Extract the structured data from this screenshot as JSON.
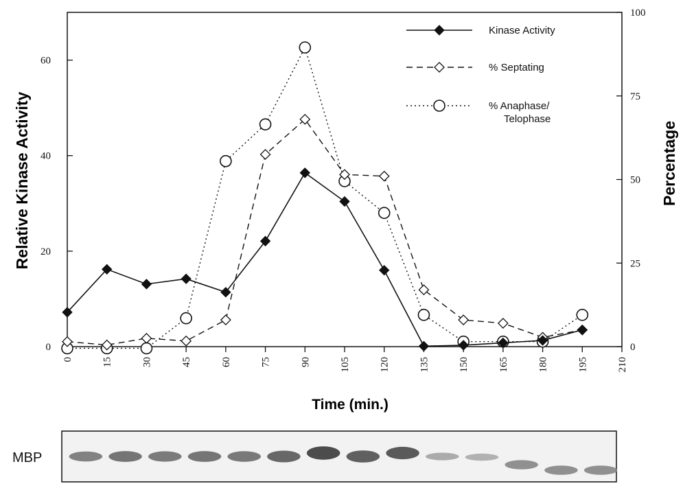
{
  "chart_data": {
    "type": "line",
    "xlabel": "Time (min.)",
    "ylabel_left": "Relative Kinase Activity",
    "ylabel_right": "Percentage",
    "x_ticks": [
      0,
      15,
      30,
      45,
      60,
      75,
      90,
      105,
      120,
      135,
      150,
      165,
      180,
      195,
      210
    ],
    "xlim": [
      0,
      210
    ],
    "y_left_ticks": [
      0,
      20,
      40,
      60
    ],
    "y_left_lim": [
      0,
      70
    ],
    "y_right_ticks": [
      0,
      25,
      50,
      75,
      100
    ],
    "y_right_lim": [
      0,
      100
    ],
    "grid": false,
    "legend_position": "top-right",
    "series": [
      {
        "name": "Kinase Activity",
        "axis": "left",
        "line": "solid",
        "marker": "filled-diamond",
        "x": [
          0,
          15,
          30,
          45,
          60,
          75,
          90,
          105,
          120,
          135,
          150,
          165,
          180,
          195
        ],
        "y": [
          7.2,
          16.2,
          13.1,
          14.2,
          11.4,
          22.1,
          36.4,
          30.4,
          16.0,
          0.1,
          0.3,
          0.8,
          1.3,
          3.5
        ]
      },
      {
        "name": "% Septating",
        "axis": "right",
        "line": "dashed",
        "marker": "open-diamond",
        "x": [
          0,
          15,
          30,
          45,
          60,
          75,
          90,
          105,
          120,
          135,
          150,
          165,
          180,
          195
        ],
        "y": [
          1.5,
          0.5,
          2.5,
          1.7,
          8.0,
          57.5,
          68.0,
          51.5,
          51.0,
          17.0,
          8.0,
          7.0,
          2.8,
          5.0
        ]
      },
      {
        "name": "% Anaphase/ Telophase",
        "legend_lines": [
          "% Anaphase/",
          "Telophase"
        ],
        "axis": "right",
        "line": "dotted",
        "marker": "open-circle",
        "x": [
          0,
          15,
          30,
          45,
          60,
          75,
          90,
          105,
          120,
          135,
          150,
          165,
          180,
          195
        ],
        "y": [
          -0.5,
          -0.5,
          -0.5,
          8.5,
          55.5,
          66.5,
          89.5,
          49.5,
          40.0,
          9.5,
          1.5,
          1.5,
          1.5,
          9.5
        ]
      }
    ]
  },
  "gel": {
    "label": "MBP",
    "lanes": 14,
    "band_intensity": [
      0.55,
      0.65,
      0.6,
      0.65,
      0.62,
      0.75,
      0.95,
      0.8,
      0.85,
      0.25,
      0.2,
      0.45,
      0.45,
      0.45
    ],
    "band_drop": [
      0,
      0,
      0,
      0,
      0,
      0,
      0,
      0,
      0,
      0,
      0.05,
      0.6,
      1.0,
      1.0
    ]
  }
}
